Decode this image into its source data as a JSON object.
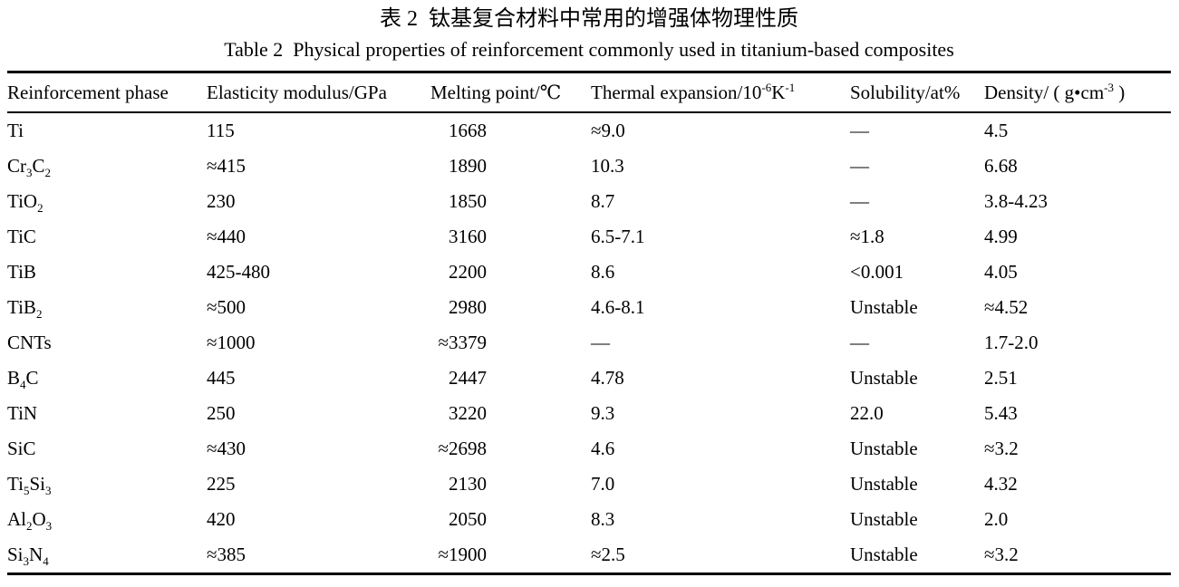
{
  "title_cn": "表 2  钛基复合材料中常用的增强体物理性质",
  "title_en": "Table 2  Physical properties of reinforcement commonly used in titanium-based composites",
  "table": {
    "columns": [
      {
        "label": "Reinforcement phase"
      },
      {
        "label": "Elasticity modulus/GPa"
      },
      {
        "label": "Melting point/℃"
      },
      {
        "label": "Thermal expansion/10^{-6}K^{-1}"
      },
      {
        "label": "Solubility/at%"
      },
      {
        "label": "Density/ ( g•cm^{-3} )"
      }
    ],
    "rows": [
      {
        "phase": "Ti",
        "elasticity": "115",
        "melting": "1668",
        "thermal": "≈9.0",
        "solubility": "—",
        "density": "4.5"
      },
      {
        "phase": "Cr_{3}C_{2}",
        "elasticity": "≈415",
        "melting": "1890",
        "thermal": "10.3",
        "solubility": "—",
        "density": "6.68"
      },
      {
        "phase": "TiO_{2}",
        "elasticity": "230",
        "melting": "1850",
        "thermal": "8.7",
        "solubility": "—",
        "density": "3.8-4.23"
      },
      {
        "phase": "TiC",
        "elasticity": "≈440",
        "melting": "3160",
        "thermal": "6.5-7.1",
        "solubility": "≈1.8",
        "density": "4.99"
      },
      {
        "phase": "TiB",
        "elasticity": "425-480",
        "melting": "2200",
        "thermal": "8.6",
        "solubility": "<0.001",
        "density": "4.05"
      },
      {
        "phase": "TiB_{2}",
        "elasticity": "≈500",
        "melting": "2980",
        "thermal": "4.6-8.1",
        "solubility": "Unstable",
        "density": "≈4.52"
      },
      {
        "phase": "CNTs",
        "elasticity": "≈1000",
        "melting": "≈3379",
        "thermal": "—",
        "solubility": "—",
        "density": "1.7-2.0"
      },
      {
        "phase": "B_{4}C",
        "elasticity": "445",
        "melting": "2447",
        "thermal": "4.78",
        "solubility": "Unstable",
        "density": "2.51"
      },
      {
        "phase": "TiN",
        "elasticity": "250",
        "melting": "3220",
        "thermal": "9.3",
        "solubility": "22.0",
        "density": "5.43"
      },
      {
        "phase": "SiC",
        "elasticity": "≈430",
        "melting": "≈2698",
        "thermal": "4.6",
        "solubility": "Unstable",
        "density": "≈3.2"
      },
      {
        "phase": "Ti_{5}Si_{3}",
        "elasticity": "225",
        "melting": "2130",
        "thermal": "7.0",
        "solubility": "Unstable",
        "density": "4.32"
      },
      {
        "phase": "Al_{2}O_{3}",
        "elasticity": "420",
        "melting": "2050",
        "thermal": "8.3",
        "solubility": "Unstable",
        "density": "2.0"
      },
      {
        "phase": "Si_{3}N_{4}",
        "elasticity": "≈385",
        "melting": "≈1900",
        "thermal": "≈2.5",
        "solubility": "Unstable",
        "density": "≈3.2"
      }
    ]
  }
}
